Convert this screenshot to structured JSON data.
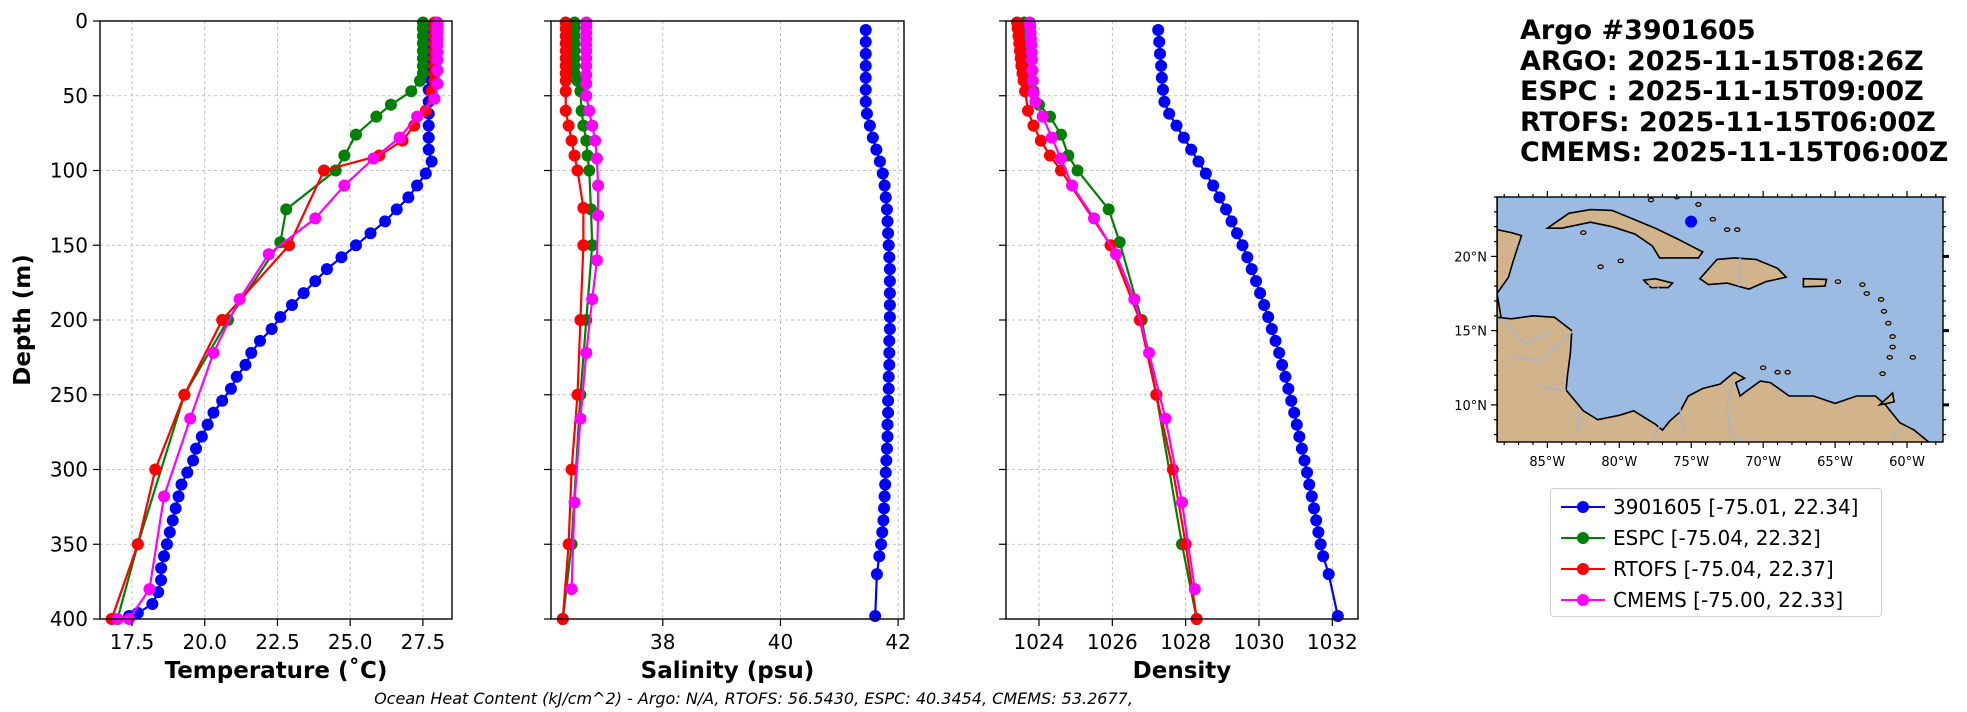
{
  "colors": {
    "argo": "#0000ff",
    "espc": "#008000",
    "rtofs": "#ff0000",
    "cmems": "#ff00ff",
    "ocean": "#9bbbe2",
    "land": "#d2b48c",
    "grid": "#b0b0b0"
  },
  "header": {
    "lines": [
      "Argo #3901605",
      "ARGO: 2025-11-15T08:26Z",
      "ESPC : 2025-11-15T09:00Z",
      "RTOFS: 2025-11-15T06:00Z",
      "CMEMS: 2025-11-15T06:00Z"
    ]
  },
  "legend": [
    {
      "label": "3901605 [-75.01, 22.34]",
      "color": "#0000ff"
    },
    {
      "label": "ESPC [-75.04, 22.32]",
      "color": "#008000"
    },
    {
      "label": "RTOFS [-75.04, 22.37]",
      "color": "#ff0000"
    },
    {
      "label": "CMEMS [-75.00, 22.33]",
      "color": "#ff00ff"
    }
  ],
  "footer": {
    "text": "Ocean Heat Content (kJ/cm^2) - Argo: N/A,  RTOFS: 56.5430,  ESPC: 40.3454,  CMEMS: 53.2677,"
  },
  "map": {
    "xticks": [
      "85°W",
      "80°W",
      "75°W",
      "70°W",
      "65°W",
      "60°W"
    ],
    "yticks": [
      "20°N",
      "15°N",
      "10°N"
    ],
    "lon_range": [
      -88.5,
      -57.5
    ],
    "lat_range": [
      7.5,
      24.0
    ],
    "float_position": {
      "lon": -75.01,
      "lat": 22.34
    }
  },
  "chart_data": [
    {
      "type": "line",
      "title": "",
      "xlabel": "Temperature (˚C)",
      "ylabel": "Depth (m)",
      "xlim": [
        16.4,
        28.5
      ],
      "ylim": [
        400,
        0
      ],
      "xticks": [
        "17.5",
        "20.0",
        "22.5",
        "25.0",
        "27.5"
      ],
      "xtick_values": [
        17.5,
        20.0,
        22.5,
        25.0,
        27.5
      ],
      "yticks": [
        "0",
        "50",
        "100",
        "150",
        "200",
        "250",
        "300",
        "350",
        "400"
      ],
      "ytick_values": [
        0,
        50,
        100,
        150,
        200,
        250,
        300,
        350,
        400
      ],
      "series": [
        {
          "name": "3901605",
          "color": "#0000ff",
          "x": [
            27.7,
            27.7,
            27.7,
            27.7,
            27.7,
            27.7,
            27.7,
            27.7,
            27.7,
            27.7,
            27.7,
            27.8,
            27.6,
            27.3,
            27.0,
            26.6,
            26.2,
            25.7,
            25.2,
            24.7,
            24.2,
            23.8,
            23.4,
            23.0,
            22.6,
            22.3,
            21.9,
            21.6,
            21.4,
            21.1,
            20.9,
            20.6,
            20.3,
            20.1,
            19.9,
            19.7,
            19.6,
            19.4,
            19.2,
            19.1,
            19.0,
            18.9,
            18.8,
            18.7,
            18.6,
            18.5,
            18.5,
            18.4,
            18.2,
            17.7,
            17.4
          ],
          "y": [
            6,
            14,
            22,
            30,
            38,
            46,
            54,
            62,
            70,
            78,
            86,
            94,
            102,
            110,
            118,
            126,
            134,
            142,
            150,
            158,
            166,
            174,
            182,
            190,
            198,
            206,
            214,
            222,
            230,
            238,
            246,
            254,
            262,
            270,
            278,
            286,
            294,
            302,
            310,
            318,
            326,
            334,
            342,
            350,
            358,
            366,
            374,
            382,
            390,
            396,
            398
          ]
        },
        {
          "name": "ESPC",
          "color": "#008000",
          "x": [
            27.5,
            27.5,
            27.5,
            27.5,
            27.5,
            27.5,
            27.5,
            27.5,
            27.4,
            27.1,
            26.4,
            25.9,
            25.2,
            24.8,
            24.5,
            22.8,
            22.6,
            20.8,
            19.3,
            17.7,
            17.0
          ],
          "y": [
            1,
            5,
            10,
            15,
            20,
            25,
            30,
            35,
            40,
            47,
            56,
            64,
            76,
            90,
            100,
            126,
            148,
            200,
            250,
            350,
            400
          ]
        },
        {
          "name": "RTOFS",
          "color": "#ff0000",
          "x": [
            27.9,
            27.9,
            27.9,
            27.9,
            27.9,
            27.9,
            27.9,
            27.9,
            27.9,
            27.8,
            27.6,
            27.2,
            26.8,
            26.0,
            24.1,
            22.9,
            20.6,
            19.3,
            18.3,
            17.7,
            16.8
          ],
          "y": [
            1,
            5,
            10,
            15,
            20,
            25,
            30,
            35,
            40,
            47,
            60,
            70,
            80,
            90,
            100,
            150,
            200,
            250,
            300,
            350,
            400
          ]
        },
        {
          "name": "CMEMS",
          "color": "#ff00ff",
          "x": [
            28.0,
            28.0,
            28.0,
            28.0,
            28.0,
            28.0,
            28.0,
            28.0,
            28.0,
            28.0,
            27.9,
            27.3,
            26.7,
            25.8,
            24.8,
            23.8,
            22.2,
            21.2,
            20.3,
            19.5,
            18.6,
            18.1,
            17.4,
            17.0
          ],
          "y": [
            1,
            3,
            5,
            8,
            12,
            16,
            21,
            26,
            33,
            42,
            52,
            64,
            78,
            92,
            110,
            132,
            156,
            186,
            222,
            266,
            318,
            380,
            400,
            400
          ]
        }
      ]
    },
    {
      "type": "line",
      "title": "",
      "xlabel": "Salinity (psu)",
      "ylabel": "",
      "xlim": [
        36.1,
        42.1
      ],
      "ylim": [
        400,
        0
      ],
      "xticks": [
        "38",
        "40",
        "42"
      ],
      "xtick_values": [
        38,
        40,
        42
      ],
      "yticks": [],
      "ytick_values": [
        0,
        50,
        100,
        150,
        200,
        250,
        300,
        350,
        400
      ],
      "series": [
        {
          "name": "3901605",
          "color": "#0000ff",
          "x": [
            41.45,
            41.45,
            41.45,
            41.45,
            41.45,
            41.45,
            41.45,
            41.47,
            41.52,
            41.57,
            41.63,
            41.69,
            41.74,
            41.77,
            41.79,
            41.81,
            41.82,
            41.83,
            41.84,
            41.85,
            41.86,
            41.86,
            41.86,
            41.86,
            41.86,
            41.86,
            41.85,
            41.85,
            41.85,
            41.84,
            41.84,
            41.83,
            41.83,
            41.82,
            41.82,
            41.81,
            41.8,
            41.79,
            41.78,
            41.77,
            41.76,
            41.75,
            41.73,
            41.71,
            41.68,
            41.64,
            41.61
          ],
          "y": [
            6,
            14,
            22,
            30,
            38,
            46,
            54,
            62,
            70,
            78,
            86,
            94,
            102,
            110,
            118,
            126,
            134,
            142,
            150,
            158,
            166,
            174,
            182,
            190,
            198,
            206,
            214,
            222,
            230,
            238,
            246,
            254,
            262,
            270,
            278,
            286,
            294,
            302,
            310,
            318,
            326,
            334,
            342,
            350,
            358,
            370,
            398
          ]
        },
        {
          "name": "ESPC",
          "color": "#008000",
          "x": [
            36.5,
            36.5,
            36.5,
            36.5,
            36.5,
            36.5,
            36.5,
            36.5,
            36.55,
            36.6,
            36.62,
            36.65,
            36.7,
            36.72,
            36.75,
            36.78,
            36.8,
            36.7,
            36.6,
            36.45,
            36.3
          ],
          "y": [
            1,
            5,
            10,
            15,
            20,
            25,
            30,
            35,
            40,
            47,
            60,
            70,
            80,
            90,
            100,
            126,
            150,
            200,
            250,
            350,
            400
          ]
        },
        {
          "name": "RTOFS",
          "color": "#ff0000",
          "x": [
            36.35,
            36.35,
            36.35,
            36.35,
            36.35,
            36.35,
            36.35,
            36.35,
            36.35,
            36.35,
            36.35,
            36.4,
            36.45,
            36.5,
            36.55,
            36.65,
            36.65,
            36.6,
            36.55,
            36.45,
            36.4,
            36.3
          ],
          "y": [
            1,
            5,
            10,
            15,
            20,
            25,
            30,
            35,
            40,
            47,
            60,
            70,
            80,
            90,
            100,
            125,
            150,
            200,
            250,
            300,
            350,
            400
          ]
        },
        {
          "name": "CMEMS",
          "color": "#ff00ff",
          "x": [
            36.7,
            36.7,
            36.7,
            36.7,
            36.7,
            36.7,
            36.7,
            36.7,
            36.7,
            36.7,
            36.7,
            36.75,
            36.8,
            36.85,
            36.88,
            36.9,
            36.9,
            36.88,
            36.8,
            36.7,
            36.6,
            36.5,
            36.45
          ],
          "y": [
            1,
            4,
            8,
            12,
            16,
            20,
            25,
            30,
            36,
            42,
            50,
            60,
            70,
            80,
            92,
            110,
            130,
            160,
            186,
            222,
            266,
            322,
            380
          ]
        }
      ]
    },
    {
      "type": "line",
      "title": "",
      "xlabel": "Density",
      "ylabel": "",
      "xlim": [
        1023.1,
        1032.7
      ],
      "ylim": [
        400,
        0
      ],
      "xticks": [
        "1024",
        "1026",
        "1028",
        "1030",
        "1032"
      ],
      "xtick_values": [
        1024,
        1026,
        1028,
        1030,
        1032
      ],
      "yticks": [],
      "ytick_values": [
        0,
        50,
        100,
        150,
        200,
        250,
        300,
        350,
        400
      ],
      "series": [
        {
          "name": "3901605",
          "color": "#0000ff",
          "x": [
            1027.25,
            1027.28,
            1027.3,
            1027.33,
            1027.35,
            1027.38,
            1027.42,
            1027.55,
            1027.75,
            1027.95,
            1028.15,
            1028.35,
            1028.55,
            1028.75,
            1028.92,
            1029.1,
            1029.25,
            1029.4,
            1029.55,
            1029.68,
            1029.8,
            1029.92,
            1030.03,
            1030.14,
            1030.25,
            1030.35,
            1030.45,
            1030.55,
            1030.63,
            1030.72,
            1030.8,
            1030.88,
            1030.96,
            1031.03,
            1031.1,
            1031.17,
            1031.24,
            1031.31,
            1031.37,
            1031.44,
            1031.5,
            1031.56,
            1031.62,
            1031.68,
            1031.75,
            1031.9,
            1032.15
          ],
          "y": [
            6,
            14,
            22,
            30,
            38,
            46,
            54,
            62,
            70,
            78,
            86,
            94,
            102,
            110,
            118,
            126,
            134,
            142,
            150,
            158,
            166,
            174,
            182,
            190,
            198,
            206,
            214,
            222,
            230,
            238,
            246,
            254,
            262,
            270,
            278,
            286,
            294,
            302,
            310,
            318,
            326,
            334,
            342,
            350,
            358,
            370,
            398
          ]
        },
        {
          "name": "ESPC",
          "color": "#008000",
          "x": [
            1023.6,
            1023.62,
            1023.64,
            1023.66,
            1023.68,
            1023.7,
            1023.72,
            1023.75,
            1023.78,
            1023.85,
            1024.0,
            1024.3,
            1024.6,
            1024.8,
            1025.05,
            1025.9,
            1026.2,
            1026.8,
            1027.2,
            1027.9,
            1028.3
          ],
          "y": [
            1,
            5,
            10,
            15,
            20,
            25,
            30,
            35,
            40,
            47,
            56,
            64,
            76,
            90,
            100,
            126,
            148,
            200,
            250,
            350,
            400
          ]
        },
        {
          "name": "RTOFS",
          "color": "#ff0000",
          "x": [
            1023.4,
            1023.42,
            1023.44,
            1023.46,
            1023.48,
            1023.5,
            1023.52,
            1023.55,
            1023.58,
            1023.62,
            1023.7,
            1023.85,
            1024.05,
            1024.3,
            1024.6,
            1025.95,
            1026.75,
            1027.2,
            1027.65,
            1028.0,
            1028.3
          ],
          "y": [
            1,
            5,
            10,
            15,
            20,
            25,
            30,
            35,
            40,
            47,
            60,
            70,
            80,
            90,
            100,
            150,
            200,
            250,
            300,
            350,
            400
          ]
        },
        {
          "name": "CMEMS",
          "color": "#ff00ff",
          "x": [
            1023.75,
            1023.76,
            1023.77,
            1023.78,
            1023.79,
            1023.8,
            1023.81,
            1023.82,
            1023.83,
            1023.85,
            1023.9,
            1024.1,
            1024.35,
            1024.6,
            1024.9,
            1025.5,
            1026.1,
            1026.6,
            1027.0,
            1027.45,
            1027.9,
            1028.25
          ],
          "y": [
            1,
            4,
            8,
            12,
            16,
            21,
            26,
            33,
            40,
            48,
            54,
            64,
            78,
            92,
            110,
            132,
            156,
            186,
            222,
            266,
            322,
            380
          ]
        }
      ]
    }
  ]
}
